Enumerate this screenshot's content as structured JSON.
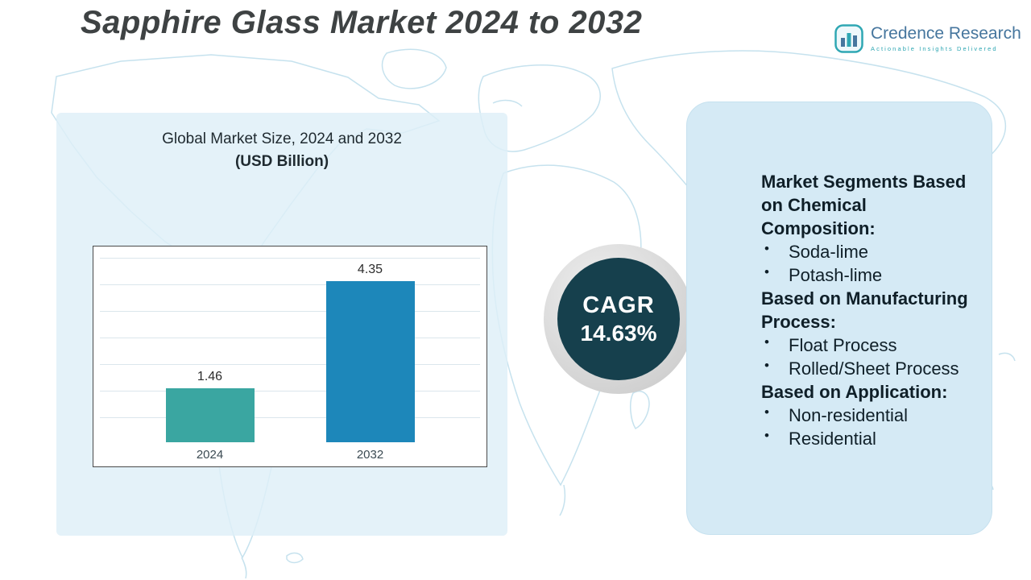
{
  "page": {
    "title": "Sapphire Glass Market 2024 to 2032"
  },
  "logo": {
    "name": "Credence Research",
    "tagline": "Actionable Insights Delivered",
    "accent_blue": "#46769e",
    "accent_teal": "#2fa7b3"
  },
  "chart_panel": {
    "title_line1": "Global Market Size, 2024 and 2032",
    "title_line2": "(USD Billion)"
  },
  "chart_data": {
    "type": "bar",
    "title": "Global Market Size, 2024 and 2032 (USD Billion)",
    "categories": [
      "2024",
      "2032"
    ],
    "values": [
      1.46,
      4.35
    ],
    "value_labels": [
      "1.46",
      "4.35"
    ],
    "bar_colors": [
      "#3aa6a1",
      "#1d87ba"
    ],
    "xlabel": "",
    "ylabel": "",
    "ylim": [
      0,
      5
    ],
    "grid": true,
    "legend": false
  },
  "cagr_badge": {
    "label": "CAGR",
    "value": "14.63%",
    "circle_color": "#16404d"
  },
  "segments_panel": {
    "blocks": [
      {
        "heading": "Market Segments Based on Chemical Composition:",
        "items": [
          "Soda-lime",
          "Potash-lime"
        ]
      },
      {
        "heading": "Based on Manufacturing Process:",
        "items": [
          "Float Process",
          "Rolled/Sheet Process"
        ]
      },
      {
        "heading": "Based on Application:",
        "items": [
          "Non-residential",
          "Residential"
        ]
      }
    ]
  },
  "colors": {
    "map_stroke": "#c6e2ee",
    "left_panel": "#deeff8",
    "right_panel": "#d5eaf5",
    "title_text": "#3e4243"
  }
}
